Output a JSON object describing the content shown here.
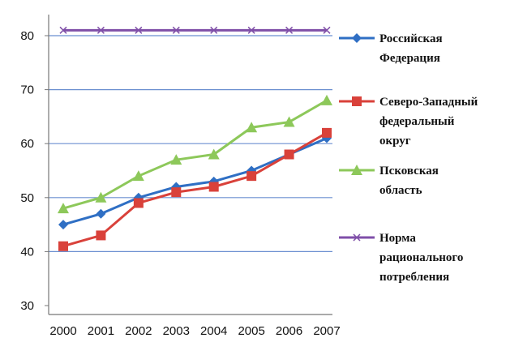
{
  "chart_data": {
    "type": "line",
    "categories": [
      "2000",
      "2001",
      "2002",
      "2003",
      "2004",
      "2005",
      "2006",
      "2007"
    ],
    "ylim": [
      30,
      80
    ],
    "yticks": [
      30,
      40,
      50,
      60,
      70,
      80
    ],
    "grid": true,
    "legend_position": "right",
    "series": [
      {
        "name": "Российская Федерация",
        "name_lines": [
          "Российская",
          "Федерация"
        ],
        "color": "#2f6fc4",
        "marker": "diamond",
        "values": [
          45,
          47,
          50,
          52,
          53,
          55,
          58,
          61
        ]
      },
      {
        "name": "Северо-Западный федеральный округ",
        "name_lines": [
          "Северо-Западный",
          "федеральный",
          "округ"
        ],
        "color": "#d9413a",
        "marker": "square",
        "values": [
          41,
          43,
          49,
          51,
          52,
          54,
          58,
          62
        ]
      },
      {
        "name": "Псковская область",
        "name_lines": [
          "Псковская",
          "область"
        ],
        "color": "#8dc85a",
        "marker": "triangle",
        "values": [
          48,
          50,
          54,
          57,
          58,
          63,
          64,
          68
        ]
      },
      {
        "name": "Норма рационального потребления",
        "name_lines": [
          "Норма",
          "рационального",
          "потребления"
        ],
        "color": "#7f4fa8",
        "marker": "x",
        "values": [
          81,
          81,
          81,
          81,
          81,
          81,
          81,
          81
        ]
      }
    ]
  }
}
